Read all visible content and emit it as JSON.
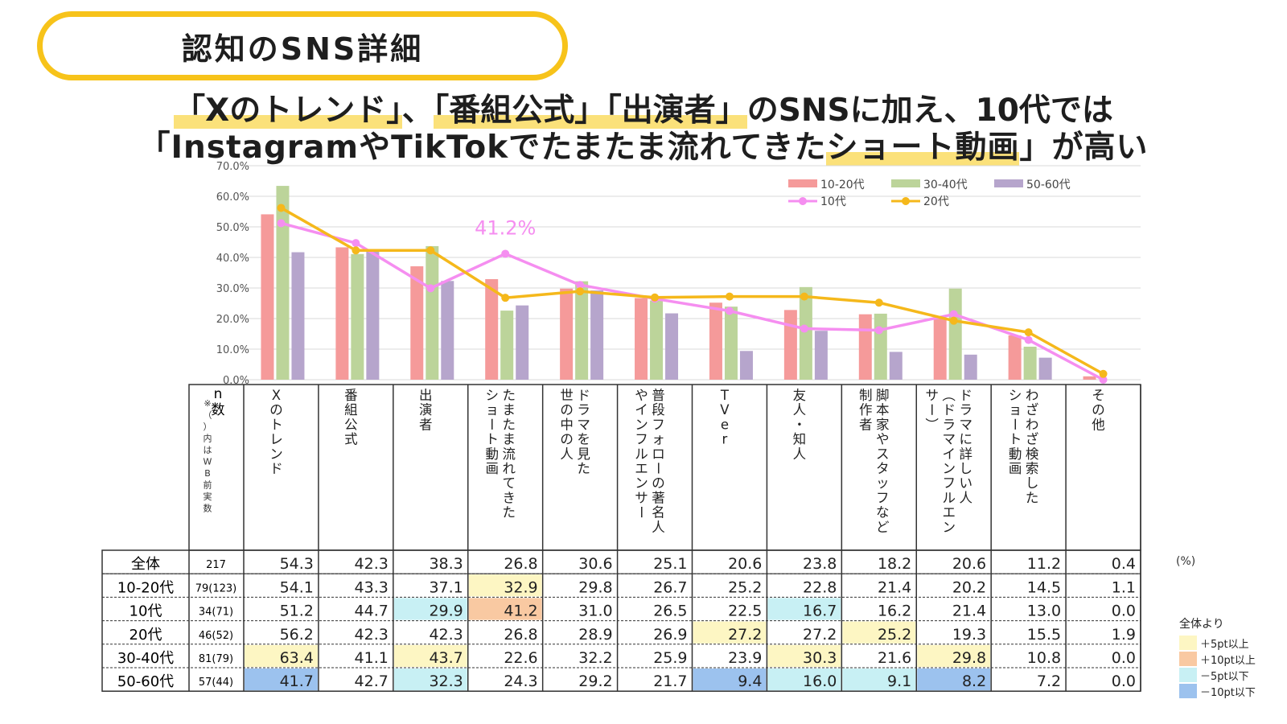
{
  "badge": "認知のSNS詳細",
  "headline": {
    "line1": [
      {
        "text": "「Xのトレンド」",
        "hl": true
      },
      {
        "text": "、",
        "hl": false
      },
      {
        "text": "「番組公式」",
        "hl": true
      },
      {
        "text": "「出演者」",
        "hl": true
      },
      {
        "text": "のSNSに加え、10代では",
        "hl": false
      }
    ],
    "line2": [
      {
        "text": "「InstagramやTikTokでたまたま流れてきた",
        "hl": false
      },
      {
        "text": "ショート動画",
        "hl": true
      },
      {
        "text": "」が高い",
        "hl": false
      }
    ]
  },
  "colors": {
    "bar_1020": "#f59a9a",
    "bar_3040": "#bcd49a",
    "bar_5060": "#b6a5cc",
    "line_10": "#f58ef0",
    "line_20": "#f5b81b",
    "cell_plus5": "#fdf6c3",
    "cell_plus10": "#f9c9a2",
    "cell_minus5": "#c8f0f4",
    "cell_minus10": "#9cc2ee",
    "annotation": "#f58ef0",
    "badge_border": "#f7c31a"
  },
  "chart_data": {
    "type": "bar",
    "y_ticks": [
      "70.0%",
      "60.0%",
      "50.0%",
      "40.0%",
      "30.0%",
      "20.0%",
      "10.0%",
      "0.0%"
    ],
    "ylim": [
      0,
      70
    ],
    "grid": true,
    "legend_position": "top-right",
    "categories": [
      "Xのトレンド",
      "番組公式",
      "出演者",
      "たまたま流れてきたショート動画",
      "ドラマを見た世の中の人",
      "普段フォローの著名人やインフルエンサー",
      "TVer",
      "友人・知人",
      "脚本家やスタッフなど制作者",
      "ドラマに詳しい人（ドラマインフルエンサー）",
      "わざわざ検索したショート動画",
      "その他"
    ],
    "bar_series": [
      {
        "name": "10-20代",
        "color_key": "bar_1020",
        "values": [
          54.1,
          43.3,
          37.1,
          32.9,
          29.8,
          26.7,
          25.2,
          22.8,
          21.4,
          20.2,
          14.5,
          1.1
        ]
      },
      {
        "name": "30-40代",
        "color_key": "bar_3040",
        "values": [
          63.4,
          41.1,
          43.7,
          22.6,
          32.2,
          25.9,
          23.9,
          30.3,
          21.6,
          29.8,
          10.8,
          0.0
        ]
      },
      {
        "name": "50-60代",
        "color_key": "bar_5060",
        "values": [
          41.7,
          42.7,
          32.3,
          24.3,
          29.2,
          21.7,
          9.4,
          16.0,
          9.1,
          8.2,
          7.2,
          0.0
        ]
      }
    ],
    "line_series": [
      {
        "name": "10代",
        "color_key": "line_10",
        "values": [
          51.2,
          44.7,
          29.9,
          41.2,
          31.0,
          26.5,
          22.5,
          16.7,
          16.2,
          21.4,
          13.0,
          0.0
        ]
      },
      {
        "name": "20代",
        "color_key": "line_20",
        "values": [
          56.2,
          42.3,
          42.3,
          26.8,
          28.9,
          26.9,
          27.2,
          27.2,
          25.2,
          19.3,
          15.5,
          1.9
        ]
      }
    ],
    "annotation": {
      "text": "41.2%",
      "series": "10代",
      "category_index": 3
    }
  },
  "table": {
    "n_header_main": "n数",
    "n_header_note": "※（）内はWB前実数",
    "columns": [
      [
        "Xのトレンド"
      ],
      [
        "番組公式"
      ],
      [
        "出演者"
      ],
      [
        "たまたま流れてきた",
        "ショート動画"
      ],
      [
        "ドラマを見た",
        "世の中の人"
      ],
      [
        "普段フォローの著名人",
        "やインフルエンサー"
      ],
      [
        "TVer"
      ],
      [
        "友人・知人"
      ],
      [
        "脚本家やスタッフなど",
        "制作者"
      ],
      [
        "ドラマに詳しい人",
        "（ドラマインフルエン",
        "サー）"
      ],
      [
        "わざわざ検索した",
        "ショート動画"
      ],
      [
        "その他"
      ]
    ],
    "rows": [
      {
        "label": "全体",
        "n": "217",
        "values": [
          "54.3",
          "42.3",
          "38.3",
          "26.8",
          "30.6",
          "25.1",
          "20.6",
          "23.8",
          "18.2",
          "20.6",
          "11.2",
          "0.4"
        ],
        "marks": [
          "",
          "",
          "",
          "",
          "",
          "",
          "",
          "",
          "",
          "",
          "",
          ""
        ]
      },
      {
        "label": "10-20代",
        "n": "79(123)",
        "values": [
          "54.1",
          "43.3",
          "37.1",
          "32.9",
          "29.8",
          "26.7",
          "25.2",
          "22.8",
          "21.4",
          "20.2",
          "14.5",
          "1.1"
        ],
        "marks": [
          "",
          "",
          "",
          "p5",
          "",
          "",
          "",
          "",
          "",
          "",
          "",
          ""
        ]
      },
      {
        "label": "10代",
        "n": "34(71)",
        "values": [
          "51.2",
          "44.7",
          "29.9",
          "41.2",
          "31.0",
          "26.5",
          "22.5",
          "16.7",
          "16.2",
          "21.4",
          "13.0",
          "0.0"
        ],
        "marks": [
          "",
          "",
          "m5",
          "p10",
          "",
          "",
          "",
          "m5",
          "",
          "",
          "",
          ""
        ]
      },
      {
        "label": "20代",
        "n": "46(52)",
        "values": [
          "56.2",
          "42.3",
          "42.3",
          "26.8",
          "28.9",
          "26.9",
          "27.2",
          "27.2",
          "25.2",
          "19.3",
          "15.5",
          "1.9"
        ],
        "marks": [
          "",
          "",
          "",
          "",
          "",
          "",
          "p5",
          "",
          "p5",
          "",
          "",
          ""
        ]
      },
      {
        "label": "30-40代",
        "n": "81(79)",
        "values": [
          "63.4",
          "41.1",
          "43.7",
          "22.6",
          "32.2",
          "25.9",
          "23.9",
          "30.3",
          "21.6",
          "29.8",
          "10.8",
          "0.0"
        ],
        "marks": [
          "p5",
          "",
          "p5",
          "",
          "",
          "",
          "",
          "p5",
          "",
          "p5",
          "",
          ""
        ]
      },
      {
        "label": "50-60代",
        "n": "57(44)",
        "values": [
          "41.7",
          "42.7",
          "32.3",
          "24.3",
          "29.2",
          "21.7",
          "9.4",
          "16.0",
          "9.1",
          "8.2",
          "7.2",
          "0.0"
        ],
        "marks": [
          "m10",
          "",
          "m5",
          "",
          "",
          "",
          "m10",
          "m5",
          "m5",
          "m10",
          "",
          ""
        ]
      }
    ]
  },
  "unit_note": "(%)",
  "color_key": {
    "title": "全体より",
    "items": [
      {
        "label": "＋5pt以上",
        "color_key": "cell_plus5"
      },
      {
        "label": "＋10pt以上",
        "color_key": "cell_plus10"
      },
      {
        "label": "－5pt以下",
        "color_key": "cell_minus5"
      },
      {
        "label": "－10pt以下",
        "color_key": "cell_minus10"
      }
    ]
  }
}
